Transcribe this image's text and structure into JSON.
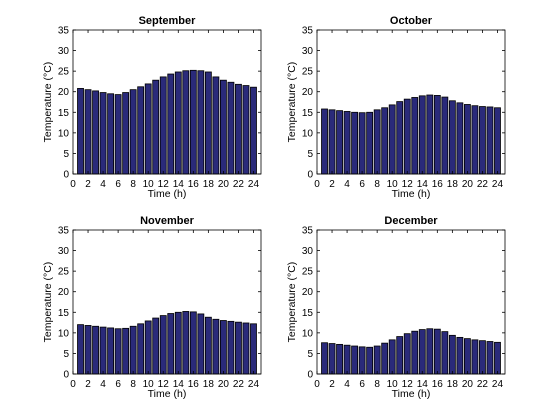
{
  "colors": {
    "bar_fill": "#2a2a7a",
    "bar_edge": "#000000",
    "axes": "#000000",
    "background": "#ffffff"
  },
  "chart_data": [
    {
      "type": "bar",
      "title": "September",
      "xlabel": "Time (h)",
      "ylabel": "Temperature (°C)",
      "xlim": [
        0,
        25
      ],
      "ylim": [
        0,
        35
      ],
      "xticks": [
        0,
        2,
        4,
        6,
        8,
        10,
        12,
        14,
        16,
        18,
        20,
        22,
        24
      ],
      "yticks": [
        0,
        5,
        10,
        15,
        20,
        25,
        30,
        35
      ],
      "grid": false,
      "x": [
        1,
        2,
        3,
        4,
        5,
        6,
        7,
        8,
        9,
        10,
        11,
        12,
        13,
        14,
        15,
        16,
        17,
        18,
        19,
        20,
        21,
        22,
        23,
        24
      ],
      "values": [
        20.8,
        20.5,
        20.2,
        19.8,
        19.5,
        19.3,
        19.8,
        20.5,
        21.2,
        21.9,
        22.8,
        23.6,
        24.3,
        24.8,
        25.1,
        25.2,
        25.1,
        24.8,
        23.6,
        22.8,
        22.3,
        21.8,
        21.5,
        21.1
      ]
    },
    {
      "type": "bar",
      "title": "October",
      "xlabel": "Time (h)",
      "ylabel": "Temperature (°C)",
      "xlim": [
        0,
        25
      ],
      "ylim": [
        0,
        35
      ],
      "xticks": [
        0,
        2,
        4,
        6,
        8,
        10,
        12,
        14,
        16,
        18,
        20,
        22,
        24
      ],
      "yticks": [
        0,
        5,
        10,
        15,
        20,
        25,
        30,
        35
      ],
      "grid": false,
      "x": [
        1,
        2,
        3,
        4,
        5,
        6,
        7,
        8,
        9,
        10,
        11,
        12,
        13,
        14,
        15,
        16,
        17,
        18,
        19,
        20,
        21,
        22,
        23,
        24
      ],
      "values": [
        15.8,
        15.6,
        15.4,
        15.2,
        15.0,
        14.9,
        15.0,
        15.6,
        16.1,
        16.8,
        17.6,
        18.2,
        18.6,
        19.0,
        19.2,
        19.1,
        18.7,
        17.8,
        17.3,
        16.9,
        16.6,
        16.4,
        16.3,
        16.1
      ]
    },
    {
      "type": "bar",
      "title": "November",
      "xlabel": "Time (h)",
      "ylabel": "Temperature (°C)",
      "xlim": [
        0,
        25
      ],
      "ylim": [
        0,
        35
      ],
      "xticks": [
        0,
        2,
        4,
        6,
        8,
        10,
        12,
        14,
        16,
        18,
        20,
        22,
        24
      ],
      "yticks": [
        0,
        5,
        10,
        15,
        20,
        25,
        30,
        35
      ],
      "grid": false,
      "x": [
        1,
        2,
        3,
        4,
        5,
        6,
        7,
        8,
        9,
        10,
        11,
        12,
        13,
        14,
        15,
        16,
        17,
        18,
        19,
        20,
        21,
        22,
        23,
        24
      ],
      "values": [
        12.0,
        11.8,
        11.6,
        11.4,
        11.2,
        11.0,
        11.1,
        11.6,
        12.2,
        12.9,
        13.6,
        14.2,
        14.7,
        15.0,
        15.2,
        15.1,
        14.6,
        13.8,
        13.3,
        13.0,
        12.8,
        12.6,
        12.4,
        12.2
      ]
    },
    {
      "type": "bar",
      "title": "December",
      "xlabel": "Time (h)",
      "ylabel": "Temperature (°C)",
      "xlim": [
        0,
        25
      ],
      "ylim": [
        0,
        35
      ],
      "xticks": [
        0,
        2,
        4,
        6,
        8,
        10,
        12,
        14,
        16,
        18,
        20,
        22,
        24
      ],
      "yticks": [
        0,
        5,
        10,
        15,
        20,
        25,
        30,
        35
      ],
      "grid": false,
      "x": [
        1,
        2,
        3,
        4,
        5,
        6,
        7,
        8,
        9,
        10,
        11,
        12,
        13,
        14,
        15,
        16,
        17,
        18,
        19,
        20,
        21,
        22,
        23,
        24
      ],
      "values": [
        7.6,
        7.4,
        7.2,
        7.0,
        6.8,
        6.6,
        6.5,
        6.8,
        7.5,
        8.3,
        9.1,
        9.8,
        10.4,
        10.8,
        11.0,
        10.9,
        10.3,
        9.4,
        8.9,
        8.6,
        8.3,
        8.1,
        7.9,
        7.7
      ]
    }
  ]
}
